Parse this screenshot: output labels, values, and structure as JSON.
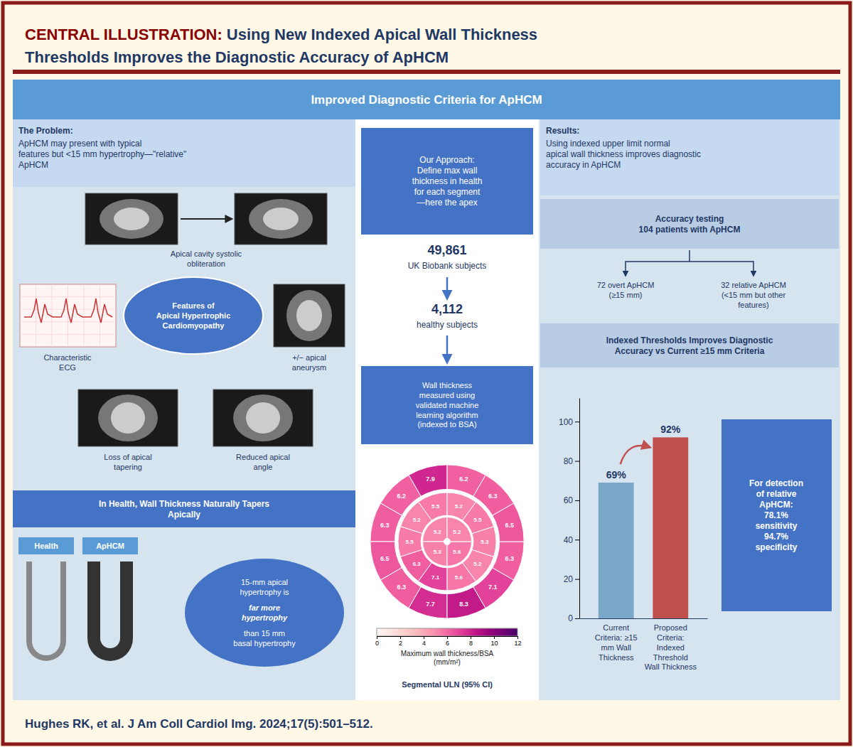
{
  "title": [
    "CENTRAL ILLUSTRATION: ",
    "Using New Indexed Apical Wall Thickness",
    "Thresholds Improves the Diagnostic Accuracy of ApHCM"
  ],
  "annotations": [
    "Improved Diagnostic Criteria for ApHCM",
    "The Problem:",
    " ApHCM may present with typical\nfeatures but <15 mm hypertrophy—\"relative\"\nApHCM",
    "Apical cavity systolic\nobliteration",
    "Characteristic\nECG",
    "Features of\nApical Hypertrophic\nCardiomyopathy",
    "+/− apical\naneurysm",
    "Loss of apical\ntapering",
    "Reduced apical\nangle",
    "In Health, Wall Thickness Naturally Tapers\nApically",
    "Health",
    "ApHCM",
    "15-mm apical\nhypertrophy is ",
    "far more\nhypertrophy",
    "than 15 mm\nbasal hypertrophy",
    "Our Approach:\nDefine max wall\nthickness in health\nfor each segment\n—here the apex",
    "49,861",
    "UK Biobank subjects",
    "4,112",
    "healthy subjects",
    "Wall thickness\nmeasured using\nvalidated machine\nlearning algorithm\n(indexed to BSA)",
    "Results:",
    " Using indexed upper limit normal\napical wall thickness improves diagnostic\naccuracy in ApHCM",
    "Accuracy testing\n104 patients with ApHCM",
    "72 overt ApHCM\n(≥15 mm)",
    "32 relative ApHCM\n(<15 mm but other\nfeatures)"
  ],
  "citation": "Hughes RK, et al. J Am Coll Cardiol Img. 2024;17(5):501–512.",
  "chart_data": [
    {
      "type": "bar",
      "title": "Indexed Thresholds Improves Diagnostic\nAccuracy vs Current ≥15 mm Criteria",
      "categories": [
        "Current\nCriteria: ≥15\nmm Wall\nThickness",
        "Proposed\nCriteria:\nIndexed\nThreshold\nWall Thickness"
      ],
      "values": [
        69,
        92
      ],
      "value_labels": [
        "69%",
        "92%"
      ],
      "data_labels": true,
      "colors": [
        "#7BA7C9",
        "#C0504D"
      ],
      "ylim": [
        0,
        112
      ],
      "yticks": [
        0,
        20,
        40,
        60,
        80,
        100
      ],
      "grid": false,
      "annotations": [
        "For detection\nof relative\nApHCM:\n78.1%\nsensitivity\n94.7%\nspecificity"
      ]
    },
    {
      "type": "bullseye",
      "title": "Segmental ULN (95% CI)",
      "values": [
        [
          7.9,
          6.2,
          6.3,
          6.5,
          6.3,
          7.7,
          8.3,
          7.1,
          6.3,
          6.5,
          6.3,
          6.2
        ],
        [
          5.5,
          5.2,
          5.5,
          6.3,
          7.1,
          5.6,
          5.2,
          5.3,
          5.5,
          5.2
        ],
        [
          5.2,
          5.3,
          5.6,
          5.2
        ]
      ],
      "data_labels": true,
      "colorbar_label": "Maximum wall thickness/BSA\n(mm/m²)",
      "colorbar_lim": [
        0,
        12
      ],
      "colorbar_ticks": [
        0,
        2,
        4,
        6,
        8,
        10,
        12
      ]
    }
  ]
}
